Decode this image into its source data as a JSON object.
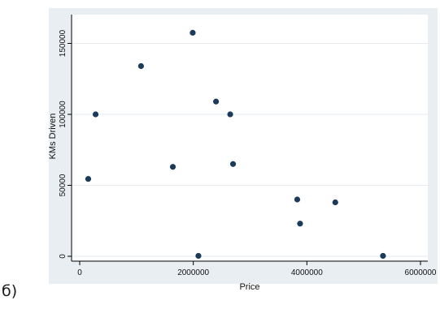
{
  "figure_label": "б)",
  "chart_data": {
    "type": "scatter",
    "title": "",
    "xlabel": "Price",
    "ylabel": "KMs Driven",
    "xlim": [
      0,
      6000000
    ],
    "ylim": [
      0,
      160000
    ],
    "x_ticks": [
      0,
      2000000,
      4000000,
      6000000
    ],
    "x_tick_labels": [
      "0",
      "2000000",
      "4000000",
      "6000000"
    ],
    "y_ticks": [
      0,
      50000,
      100000,
      150000
    ],
    "y_tick_labels": [
      "0",
      "50000",
      "100000",
      "150000"
    ],
    "grid": true,
    "legend": "none",
    "colors": {
      "background": "#e9eef3",
      "plot_area": "#ffffff",
      "marker": "#1c3b5a",
      "gridline": "#e6ebf0",
      "text": "#111111"
    },
    "points": [
      {
        "x": 150000,
        "y": 54500
      },
      {
        "x": 280000,
        "y": 100000
      },
      {
        "x": 1080000,
        "y": 134000
      },
      {
        "x": 1640000,
        "y": 63000
      },
      {
        "x": 1990000,
        "y": 157500
      },
      {
        "x": 2090000,
        "y": 300
      },
      {
        "x": 2400000,
        "y": 109000
      },
      {
        "x": 2650000,
        "y": 100000
      },
      {
        "x": 2700000,
        "y": 65000
      },
      {
        "x": 3830000,
        "y": 40000
      },
      {
        "x": 3880000,
        "y": 23000
      },
      {
        "x": 4500000,
        "y": 38000
      },
      {
        "x": 5340000,
        "y": 300
      }
    ]
  }
}
